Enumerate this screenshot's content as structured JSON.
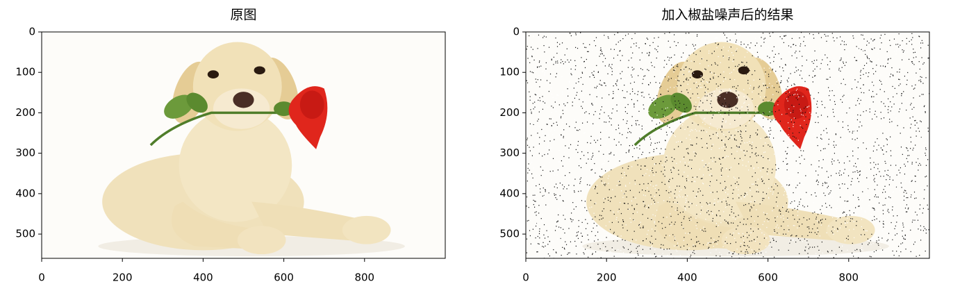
{
  "chart_data": [
    {
      "type": "image",
      "title": "原图",
      "xlim": [
        0,
        1000
      ],
      "ylim": [
        560,
        0
      ],
      "xticks": [
        0,
        200,
        400,
        600,
        800
      ],
      "yticks": [
        0,
        100,
        200,
        300,
        400,
        500
      ]
    },
    {
      "type": "image",
      "title": "加入椒盐噪声后的结果",
      "xlim": [
        0,
        1000
      ],
      "ylim": [
        560,
        0
      ],
      "xticks": [
        0,
        200,
        400,
        600,
        800
      ],
      "yticks": [
        0,
        100,
        200,
        300,
        400,
        500
      ],
      "salt_pepper_noise": true
    }
  ]
}
